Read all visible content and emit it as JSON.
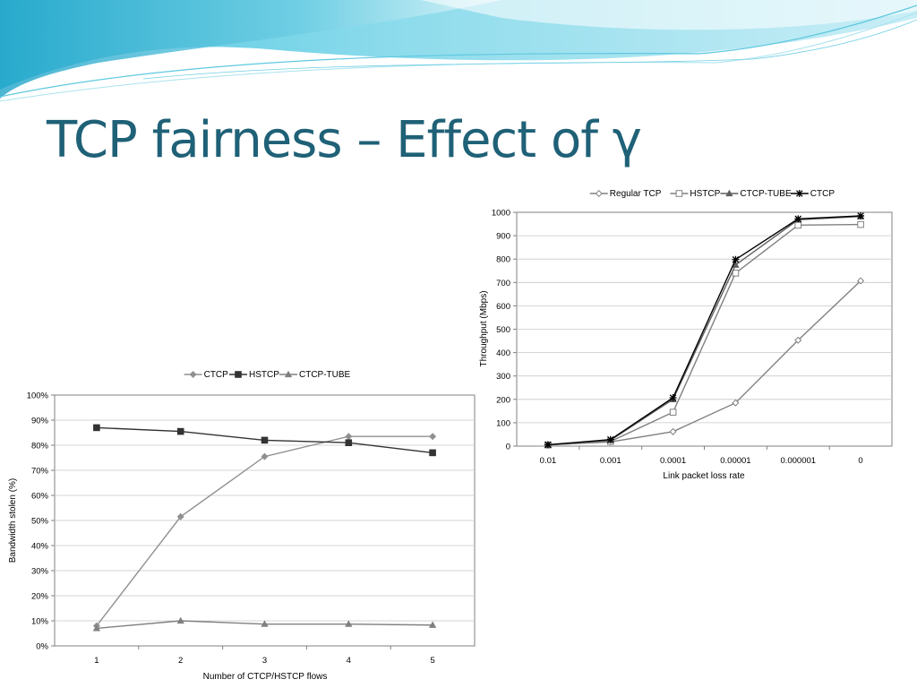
{
  "slide": {
    "title": "TCP fairness – Effect of γ",
    "colors": {
      "title": "#1f6177",
      "banner_light": "#dff5fa",
      "banner_mid": "#7fd6e8",
      "banner_dark": "#2aa8cc"
    }
  },
  "chart_data": [
    {
      "id": "throughput",
      "type": "line",
      "title": "",
      "xlabel": "Link packet loss rate",
      "ylabel": "Throughput (Mbps)",
      "categories": [
        "0.01",
        "0.001",
        "0.0001",
        "0.00001",
        "0.000001",
        "0"
      ],
      "yticks": [
        "0",
        "100",
        "200",
        "300",
        "400",
        "500",
        "600",
        "700",
        "800",
        "900",
        "1000"
      ],
      "ylim": [
        0,
        1000
      ],
      "grid": true,
      "legend": "top",
      "series": [
        {
          "name": "Regular TCP",
          "marker": "diamond-open",
          "color": "#808080",
          "values": [
            5,
            18,
            62,
            185,
            453,
            707
          ]
        },
        {
          "name": "HSTCP",
          "marker": "square-open",
          "color": "#808080",
          "values": [
            5,
            20,
            145,
            740,
            945,
            948
          ]
        },
        {
          "name": "CTCP-TUBE",
          "marker": "triangle",
          "color": "#606060",
          "values": [
            5,
            25,
            200,
            775,
            968,
            982
          ]
        },
        {
          "name": "CTCP",
          "marker": "star",
          "color": "#000000",
          "values": [
            6,
            28,
            207,
            798,
            972,
            985
          ]
        }
      ]
    },
    {
      "id": "stolen",
      "type": "line",
      "title": "",
      "xlabel": "Number of  CTCP/HSTCP flows",
      "ylabel": "Bandwidth stolen (%)",
      "categories": [
        "1",
        "2",
        "3",
        "4",
        "5"
      ],
      "yticks": [
        "0%",
        "10%",
        "20%",
        "30%",
        "40%",
        "50%",
        "60%",
        "70%",
        "80%",
        "90%",
        "100%"
      ],
      "ylim": [
        0,
        100
      ],
      "grid": true,
      "legend": "top",
      "series": [
        {
          "name": "CTCP",
          "marker": "diamond",
          "color": "#909090",
          "values": [
            8,
            51.5,
            75.5,
            83.5,
            83.5
          ]
        },
        {
          "name": "HSTCP",
          "marker": "square",
          "color": "#333333",
          "values": [
            87,
            85.5,
            82,
            81,
            77
          ]
        },
        {
          "name": "CTCP-TUBE",
          "marker": "triangle",
          "color": "#808080",
          "values": [
            7,
            10,
            8.7,
            8.7,
            8.3
          ]
        }
      ]
    }
  ]
}
